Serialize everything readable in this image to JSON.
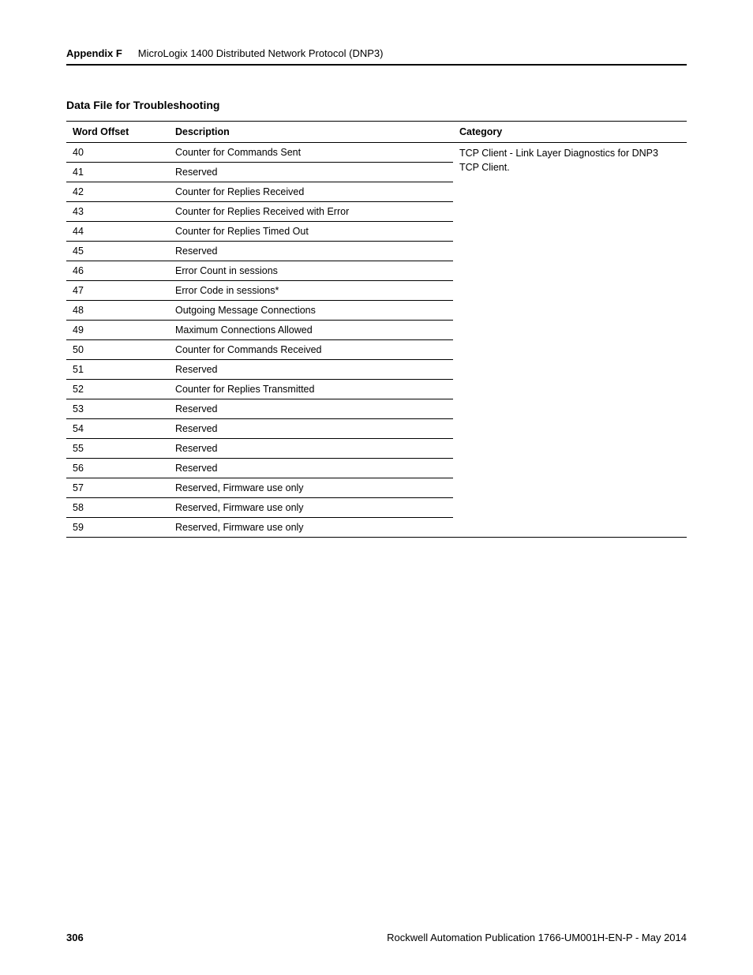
{
  "header": {
    "appendix_label": "Appendix F",
    "title": "MicroLogix 1400 Distributed Network Protocol (DNP3)"
  },
  "section_title": "Data File for Troubleshooting",
  "table": {
    "columns": [
      "Word Offset",
      "Description",
      "Category"
    ],
    "category_text": "TCP Client - Link Layer Diagnostics for DNP3 TCP Client.",
    "rows": [
      {
        "offset": "40",
        "desc": "Counter for Commands Sent"
      },
      {
        "offset": "41",
        "desc": "Reserved"
      },
      {
        "offset": "42",
        "desc": "Counter for Replies Received"
      },
      {
        "offset": "43",
        "desc": "Counter for Replies Received with Error"
      },
      {
        "offset": "44",
        "desc": "Counter for Replies Timed Out"
      },
      {
        "offset": "45",
        "desc": "Reserved"
      },
      {
        "offset": "46",
        "desc": "Error Count in sessions"
      },
      {
        "offset": "47",
        "desc": "Error Code in sessions*"
      },
      {
        "offset": "48",
        "desc": "Outgoing Message Connections"
      },
      {
        "offset": "49",
        "desc": "Maximum Connections Allowed"
      },
      {
        "offset": "50",
        "desc": "Counter for Commands Received"
      },
      {
        "offset": "51",
        "desc": "Reserved"
      },
      {
        "offset": "52",
        "desc": "Counter for Replies Transmitted"
      },
      {
        "offset": "53",
        "desc": "Reserved"
      },
      {
        "offset": "54",
        "desc": "Reserved"
      },
      {
        "offset": "55",
        "desc": "Reserved"
      },
      {
        "offset": "56",
        "desc": "Reserved"
      },
      {
        "offset": "57",
        "desc": "Reserved, Firmware use only"
      },
      {
        "offset": "58",
        "desc": "Reserved, Firmware use only"
      },
      {
        "offset": "59",
        "desc": "Reserved, Firmware use only"
      }
    ]
  },
  "footer": {
    "page_number": "306",
    "publication": "Rockwell Automation Publication 1766-UM001H-EN-P - May 2014"
  },
  "styling": {
    "background_color": "#ffffff",
    "text_color": "#000000",
    "border_color": "#000000",
    "body_font_size": 12.5,
    "title_font_size": 14,
    "header_font_size": 13
  }
}
